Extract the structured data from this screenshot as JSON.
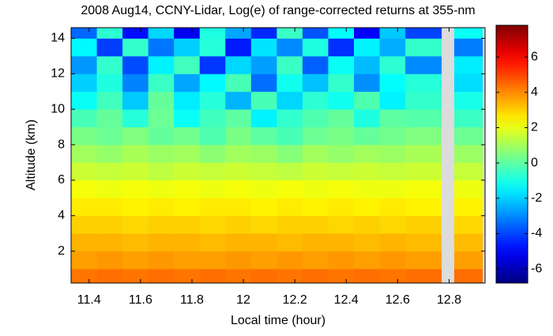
{
  "chart_data": {
    "type": "heatmap",
    "title": "2008 Aug14, CCNY-Lidar, Log(e) of range-corrected returns at 355-nm",
    "xlabel": "Local time (hour)",
    "ylabel": "Altitude (km)",
    "xbins": [
      11.33,
      11.43,
      11.53,
      11.63,
      11.73,
      11.83,
      11.93,
      12.03,
      12.13,
      12.23,
      12.33,
      12.43,
      12.53,
      12.63,
      12.77,
      12.82,
      12.93
    ],
    "ybins": [
      0.2,
      1,
      2,
      3,
      4,
      5,
      6,
      7,
      8,
      9,
      10,
      11,
      12,
      13,
      14,
      14.6
    ],
    "values": [
      [
        4.3,
        4.4,
        4.3,
        4.4,
        4.3,
        4.4,
        4.3,
        4.4,
        4.3,
        4.4,
        4.3,
        4.4,
        4.3,
        4.4,
        null,
        4.4
      ],
      [
        3.7,
        3.8,
        3.7,
        3.8,
        3.7,
        3.7,
        3.8,
        3.7,
        3.8,
        3.7,
        3.8,
        3.7,
        3.8,
        3.7,
        null,
        3.7
      ],
      [
        3.4,
        3.4,
        3.3,
        3.4,
        3.4,
        3.3,
        3.4,
        3.4,
        3.3,
        3.4,
        3.4,
        3.3,
        3.4,
        3.3,
        null,
        3.3
      ],
      [
        3.0,
        3.0,
        2.9,
        3.0,
        3.0,
        2.9,
        3.0,
        2.9,
        3.0,
        3.0,
        2.9,
        3.0,
        2.9,
        3.0,
        null,
        2.9
      ],
      [
        2.6,
        2.6,
        2.5,
        2.6,
        2.5,
        2.6,
        2.6,
        2.5,
        2.6,
        2.5,
        2.6,
        2.5,
        2.6,
        2.5,
        null,
        2.5
      ],
      [
        2.2,
        2.1,
        2.2,
        2.1,
        2.2,
        2.1,
        2.2,
        2.1,
        2.2,
        2.1,
        2.2,
        2.1,
        2.1,
        2.2,
        null,
        2.1
      ],
      [
        1.6,
        1.5,
        1.6,
        1.4,
        1.6,
        1.5,
        1.6,
        1.5,
        1.4,
        1.6,
        1.5,
        1.6,
        1.5,
        1.6,
        null,
        1.5
      ],
      [
        1.0,
        0.8,
        1.1,
        0.9,
        1.0,
        0.7,
        1.0,
        0.9,
        0.6,
        1.0,
        0.8,
        1.0,
        0.9,
        1.1,
        null,
        0.9
      ],
      [
        0.4,
        0.2,
        0.5,
        0.1,
        0.3,
        -0.2,
        0.4,
        0.0,
        -0.3,
        0.2,
        0.4,
        0.1,
        0.3,
        0.5,
        null,
        0.2
      ],
      [
        -0.3,
        0.1,
        -0.8,
        0.2,
        -1.2,
        -0.4,
        0.0,
        -1.5,
        -0.6,
        -0.2,
        0.1,
        -0.9,
        0.0,
        -0.1,
        null,
        -0.5
      ],
      [
        -1.2,
        -0.4,
        -2.1,
        0.1,
        -1.6,
        -0.8,
        -2.4,
        -0.3,
        -1.9,
        -0.7,
        -1.1,
        -0.2,
        -1.5,
        -0.6,
        null,
        -1.0
      ],
      [
        -2.0,
        -0.9,
        -3.1,
        -0.5,
        -2.6,
        -1.4,
        -0.3,
        -3.4,
        -1.1,
        -2.2,
        -0.6,
        -2.9,
        -1.3,
        -0.8,
        null,
        -1.8
      ],
      [
        -2.8,
        -0.6,
        -3.9,
        -1.5,
        -0.4,
        -4.2,
        -1.9,
        -2.7,
        -0.5,
        -3.6,
        -1.2,
        -2.3,
        -0.7,
        -3.0,
        null,
        -1.6
      ],
      [
        -1.4,
        -4.1,
        -0.6,
        -3.3,
        -2.0,
        -0.8,
        -4.6,
        -1.7,
        -3.0,
        -0.9,
        -4.3,
        -1.5,
        -2.5,
        -0.6,
        null,
        -3.2
      ],
      [
        -3.5,
        -0.7,
        -4.8,
        -1.9,
        -5.2,
        -0.9,
        -2.6,
        -4.4,
        -0.5,
        -3.8,
        -1.3,
        -5.0,
        -2.1,
        -4.0,
        null,
        -1.2
      ]
    ],
    "xlim": [
      11.33,
      12.94
    ],
    "xticks": [
      11.4,
      11.6,
      11.8,
      12,
      12.2,
      12.4,
      12.6,
      12.8
    ],
    "ylim": [
      0.2,
      14.6
    ],
    "yticks": [
      2,
      4,
      6,
      8,
      10,
      12,
      14
    ],
    "clim": [
      -6.8,
      7.8
    ],
    "cticks": [
      -6,
      -4,
      -2,
      0,
      2,
      4,
      6
    ],
    "colormap": "jet",
    "missing_color": "#dcdcdc"
  }
}
